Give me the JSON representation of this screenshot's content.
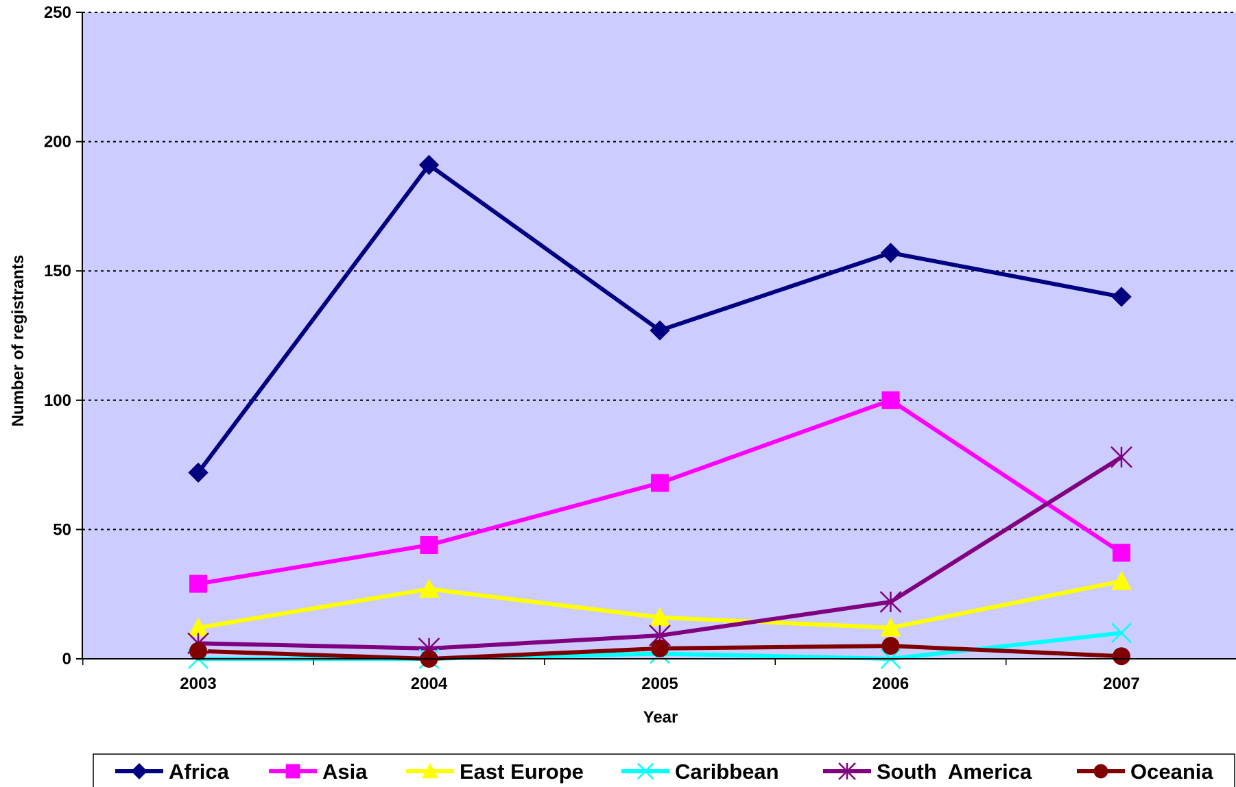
{
  "chart_data": {
    "type": "line",
    "categories": [
      "2003",
      "2004",
      "2005",
      "2006",
      "2007"
    ],
    "xlabel": "Year",
    "ylabel": "Number of registrants",
    "ylim": [
      0,
      250
    ],
    "yticks": [
      0,
      50,
      100,
      150,
      200,
      250
    ],
    "grid": "horizontal dotted",
    "legend_position": "bottom",
    "plot_background": "#ccccff",
    "series": [
      {
        "name": "Africa",
        "values": [
          72,
          191,
          127,
          157,
          140
        ],
        "color": "#000080",
        "marker": "diamond"
      },
      {
        "name": "Asia",
        "values": [
          29,
          44,
          68,
          100,
          41
        ],
        "color": "#ff00ff",
        "marker": "square"
      },
      {
        "name": "East Europe",
        "values": [
          12,
          27,
          16,
          12,
          30
        ],
        "color": "#ffff00",
        "marker": "triangle"
      },
      {
        "name": "Caribbean",
        "values": [
          0,
          0,
          2,
          0,
          10
        ],
        "color": "#00ffff",
        "marker": "x"
      },
      {
        "name": "South  America",
        "values": [
          6,
          4,
          9,
          22,
          78
        ],
        "color": "#800080",
        "marker": "star"
      },
      {
        "name": "Oceania",
        "values": [
          3,
          0,
          4,
          5,
          1
        ],
        "color": "#800000",
        "marker": "circle"
      }
    ]
  }
}
